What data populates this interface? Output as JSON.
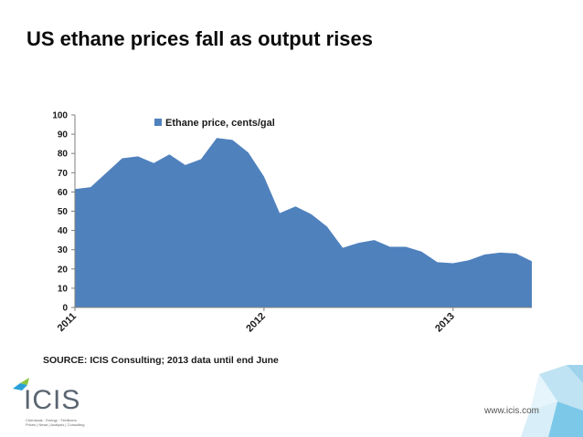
{
  "slide": {
    "title": "US ethane prices fall as output rises",
    "source": "SOURCE: ICIS Consulting; 2013 data until end June",
    "website": "www.icis.com",
    "logo_text": "ICIS",
    "logo_tagline": "Chemicals · Energy · Fertilizers",
    "logo_tagline2": "Prices | News | Analysis | Consulting"
  },
  "colors": {
    "area": "#4f81bd",
    "axis": "#7f7f7f",
    "text": "#1a1a1a"
  },
  "chart_data": {
    "type": "area",
    "series": [
      {
        "name": "Ethane price, cents/gal",
        "values": [
          61.5,
          62.5,
          70,
          77.5,
          78.5,
          75,
          79.5,
          74,
          77,
          88,
          87,
          80.5,
          68,
          49,
          52.5,
          48.5,
          42,
          31,
          33.5,
          35,
          31.5,
          31.5,
          29,
          23.5,
          23,
          24.5,
          27.5,
          28.5,
          28,
          24
        ]
      }
    ],
    "x_tick_labels": [
      "2011",
      "2012",
      "2013"
    ],
    "x_tick_index": [
      0,
      12,
      24
    ],
    "y_tick_labels": [
      "0",
      "10",
      "20",
      "30",
      "40",
      "50",
      "60",
      "70",
      "80",
      "90",
      "100"
    ],
    "ylim": [
      0,
      100
    ],
    "legend_position": "top-left",
    "grid": false
  }
}
